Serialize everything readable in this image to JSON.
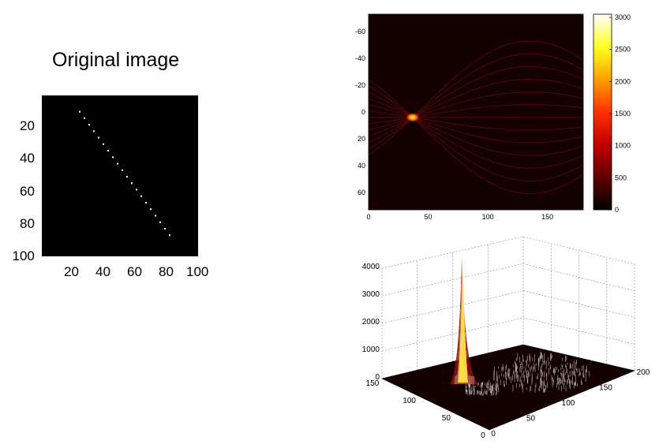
{
  "chart_data": [
    {
      "type": "scatter",
      "title": "Original image",
      "xlabel": "",
      "ylabel": "",
      "xlim": [
        1,
        100
      ],
      "ylim": [
        1,
        100
      ],
      "y_reversed": true,
      "background": "#000000",
      "point_color": "#ffffff",
      "xticks": [
        "20",
        "40",
        "60",
        "80",
        "100"
      ],
      "yticks": [
        "20",
        "40",
        "60",
        "80",
        "100"
      ],
      "points": [
        {
          "x": 25,
          "y": 11
        },
        {
          "x": 28,
          "y": 15
        },
        {
          "x": 31,
          "y": 19
        },
        {
          "x": 34,
          "y": 23
        },
        {
          "x": 37,
          "y": 27
        },
        {
          "x": 40,
          "y": 31
        },
        {
          "x": 43,
          "y": 35
        },
        {
          "x": 46,
          "y": 39
        },
        {
          "x": 49,
          "y": 43
        },
        {
          "x": 52,
          "y": 47
        },
        {
          "x": 55,
          "y": 51
        },
        {
          "x": 58,
          "y": 55
        },
        {
          "x": 61,
          "y": 59
        },
        {
          "x": 64,
          "y": 63
        },
        {
          "x": 67,
          "y": 67
        },
        {
          "x": 70,
          "y": 71
        },
        {
          "x": 73,
          "y": 75
        },
        {
          "x": 76,
          "y": 79
        },
        {
          "x": 79,
          "y": 83
        },
        {
          "x": 82,
          "y": 87
        }
      ]
    },
    {
      "type": "heatmap",
      "xlim": [
        0,
        180
      ],
      "ylim": [
        -73,
        73
      ],
      "y_reversed": true,
      "xticks": [
        "0",
        "50",
        "100",
        "150"
      ],
      "yticks": [
        "-60",
        "-40",
        "-20",
        "0",
        "20",
        "40",
        "60"
      ],
      "colormap": "hot",
      "colorbar_range": [
        0,
        3050
      ],
      "colorbar_ticks": [
        "0",
        "500",
        "1000",
        "1500",
        "2000",
        "2500",
        "3000"
      ],
      "peak": {
        "theta": 37,
        "rho": 4,
        "value": 3050
      },
      "curve_rho_offsets": [
        -12,
        -10,
        -8,
        -6,
        -4,
        -2,
        0,
        2,
        4,
        6,
        8,
        10,
        12
      ]
    },
    {
      "type": "surface",
      "zlim": [
        0,
        4000
      ],
      "zticks": [
        "0",
        "1000",
        "2000",
        "3000",
        "4000"
      ],
      "xticks": [
        "0",
        "50",
        "100",
        "150",
        "200"
      ],
      "yticks": [
        "0",
        "50",
        "100",
        "150"
      ],
      "peak_value": 3050
    }
  ]
}
